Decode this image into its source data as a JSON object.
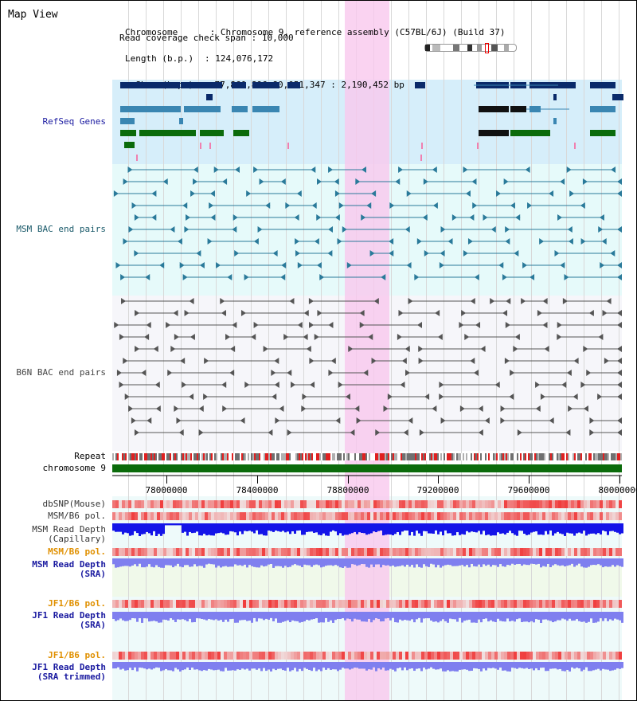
{
  "page_title": "Map View",
  "info": {
    "chromosome_key": "Chromosome",
    "chromosome_val": "Chromosome 9, reference assembly (C57BL/6J) (Build 37)",
    "length_key": "Length (b.p.)",
    "length_val": "124,076,172",
    "show_key": "Show (b.p.)",
    "show_val": "77,860,896-80,051,347 : 2,190,452 bp",
    "coverage_key": "Read coverage check span",
    "coverage_val": "10,000"
  },
  "tracks": {
    "refseq": "RefSeq Genes",
    "msm_bac": "MSM BAC end pairs",
    "b6n_bac": "B6N BAC end pairs",
    "repeat": "Repeat",
    "chromosome": "chromosome 9",
    "dbsnp": "dbSNP(Mouse)",
    "msm_b6_pol_1": "MSM/B6 pol.",
    "msm_read_depth_cap": "MSM Read Depth\n(Capillary)",
    "msm_b6_pol_2": "MSM/B6 pol.",
    "msm_read_depth_sra": "MSM Read Depth\n(SRA)",
    "jf1_b6_pol_1": "JF1/B6 pol.",
    "jf1_read_depth_sra": "JF1 Read Depth\n(SRA)",
    "jf1_b6_pol_2": "JF1/B6 pol.",
    "jf1_read_depth_trim": "JF1 Read Depth\n(SRA trimmed)"
  },
  "axis_ticks": [
    "78000000",
    "78400000",
    "78800000",
    "79200000",
    "79600000",
    "80000000"
  ],
  "colors": {
    "highlight": "#f9c8ee",
    "refseq_bg": "#d6eefa",
    "bac_bg": "#e6fafa",
    "b6n_bg": "#f6f6fa",
    "refseq_dark": "#0a2a6a",
    "refseq_mid": "#3a86b2",
    "refseq_green": "#0b6b0b",
    "msm_line": "#2a7a9a",
    "b6n_line": "#555555",
    "chrom": "#0b6b0b",
    "depth_blue": "#1414e8",
    "depth_violet": "#7f7fef",
    "label_blue": "#1a1aa0",
    "label_orange": "#e09000",
    "label_teal": "#1a5a6a"
  }
}
